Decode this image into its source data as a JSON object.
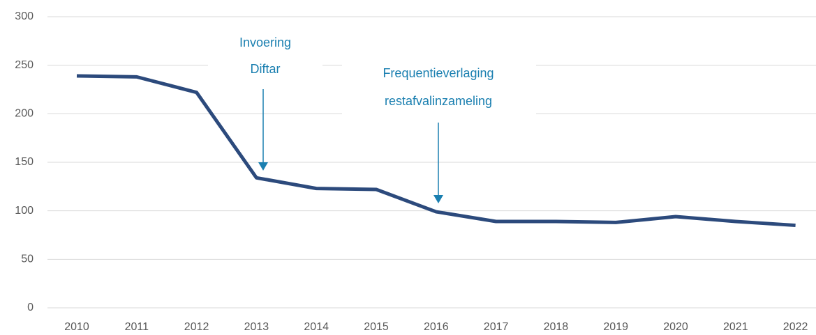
{
  "chart_data": {
    "type": "line",
    "categories": [
      "2010",
      "2011",
      "2012",
      "2013",
      "2014",
      "2015",
      "2016",
      "2017",
      "2018",
      "2019",
      "2020",
      "2021",
      "2022"
    ],
    "series": [
      {
        "color": "#2c4a7c",
        "values": [
          239,
          238,
          222,
          134,
          123,
          122,
          99,
          89,
          89,
          88,
          94,
          89,
          85
        ]
      }
    ],
    "ylim": [
      0,
      300
    ],
    "yticks": [
      0,
      50,
      100,
      150,
      200,
      250,
      300
    ],
    "grid": true,
    "annotations": [
      {
        "text": [
          "Invoering",
          "Diftar"
        ],
        "color": "#1a7fb0"
      },
      {
        "text": [
          "Frequentieverlaging",
          "restafvalinzameling"
        ],
        "color": "#1a7fb0"
      }
    ]
  }
}
